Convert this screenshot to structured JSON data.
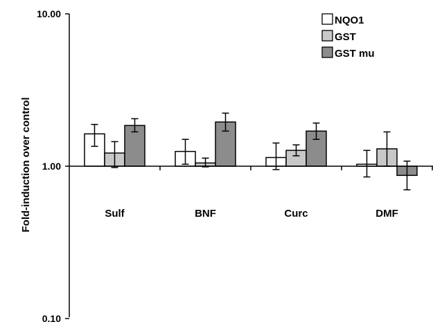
{
  "chart_data": {
    "type": "bar",
    "scale": "log",
    "ylim": [
      0.1,
      10
    ],
    "yticks": [
      "10.00",
      "1.00",
      "0.10"
    ],
    "ylabel": "Fold-induction over control",
    "xlabel": "",
    "title": "",
    "legend_position": "top-right",
    "grid": false,
    "categories": [
      "Sulf",
      "BNF",
      "Curc",
      "DMF"
    ],
    "series": [
      {
        "name": "NQO1",
        "color": "#ffffff",
        "values": [
          1.63,
          1.25,
          1.14,
          1.03
        ],
        "errors": [
          [
            1.35,
            1.88
          ],
          [
            1.03,
            1.5
          ],
          [
            0.95,
            1.42
          ],
          [
            0.85,
            1.27
          ]
        ]
      },
      {
        "name": "GST",
        "color": "#c8c8c8",
        "values": [
          1.22,
          1.05,
          1.27,
          1.3
        ],
        "errors": [
          [
            0.98,
            1.45
          ],
          [
            0.99,
            1.13
          ],
          [
            1.17,
            1.38
          ],
          [
            1.0,
            1.68
          ]
        ]
      },
      {
        "name": "GST mu",
        "color": "#8c8c8c",
        "values": [
          1.85,
          1.95,
          1.7,
          0.87
        ],
        "errors": [
          [
            1.68,
            2.05
          ],
          [
            1.7,
            2.23
          ],
          [
            1.5,
            1.92
          ],
          [
            0.7,
            1.08
          ]
        ]
      }
    ]
  }
}
